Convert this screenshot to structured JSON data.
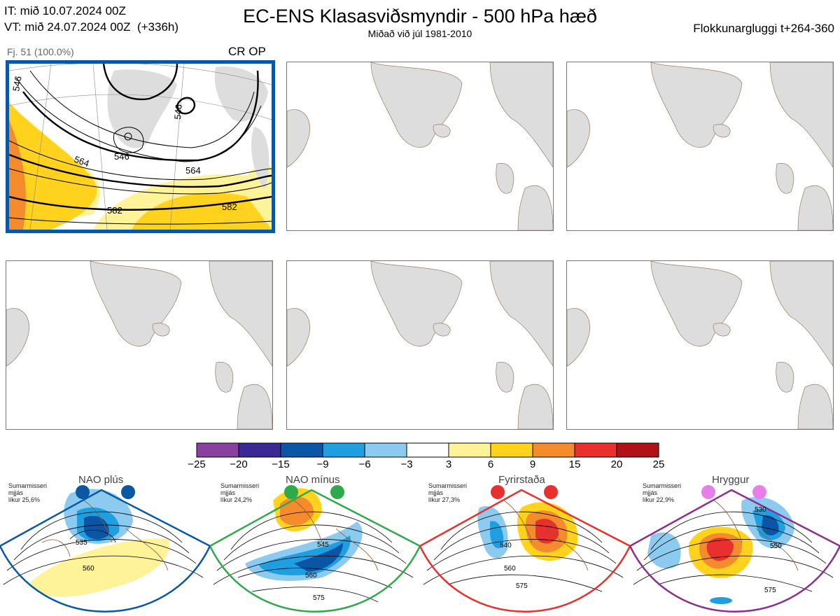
{
  "header": {
    "it_line": "IT: mið 10.07.2024 00Z",
    "vt_line": "VT: mið 24.07.2024 00Z  (+336h)",
    "title": "EC-ENS Klasasviðsmyndir - 500 hPa hæð",
    "subtitle": "Miðað við júl 1981-2010",
    "window": "Flokkunargluggi t+264-360"
  },
  "cluster_panel": {
    "label": "Fj. 51 (100.0%)",
    "tag": "CR OP",
    "contour_labels": [
      "546",
      "546",
      "564",
      "564",
      "582",
      "582",
      "546"
    ],
    "border_color": "#0a57a4"
  },
  "colorbar": {
    "ticks": [
      "−25",
      "−20",
      "−15",
      "−9",
      "−6",
      "−3",
      "3",
      "6",
      "9",
      "15",
      "20",
      "25"
    ],
    "colors": [
      "#8b3f9e",
      "#3c2894",
      "#0b55a6",
      "#1f9ee0",
      "#8ccaf0",
      "#ffffff",
      "#fff39a",
      "#ffd21e",
      "#f48c2e",
      "#e8302e",
      "#b01216"
    ]
  },
  "regimes": [
    {
      "title": "NAO plús",
      "line1": "Sumarmisseri",
      "line2": "mjjás",
      "line3": "líkur 25,6%",
      "color": "#0a57a4",
      "labels": [
        "535",
        "560"
      ]
    },
    {
      "title": "NAO mínus",
      "line1": "Sumarmisseri",
      "line2": "mjjás",
      "line3": "líkur 24,2%",
      "color": "#2eaa4a",
      "labels": [
        "545",
        "560",
        "575"
      ]
    },
    {
      "title": "Fyrirstaða",
      "line1": "Sumarmisseri",
      "line2": "mjjás",
      "line3": "líkur 27,3%",
      "color": "#e8302e",
      "labels": [
        "540",
        "560",
        "575"
      ]
    },
    {
      "title": "Hryggur",
      "line1": "Sumarmisseri",
      "line2": "mjjás",
      "line3": "líkur 22,9%",
      "color": "#8b2f8e",
      "labels": [
        "530",
        "550",
        "575"
      ]
    }
  ]
}
